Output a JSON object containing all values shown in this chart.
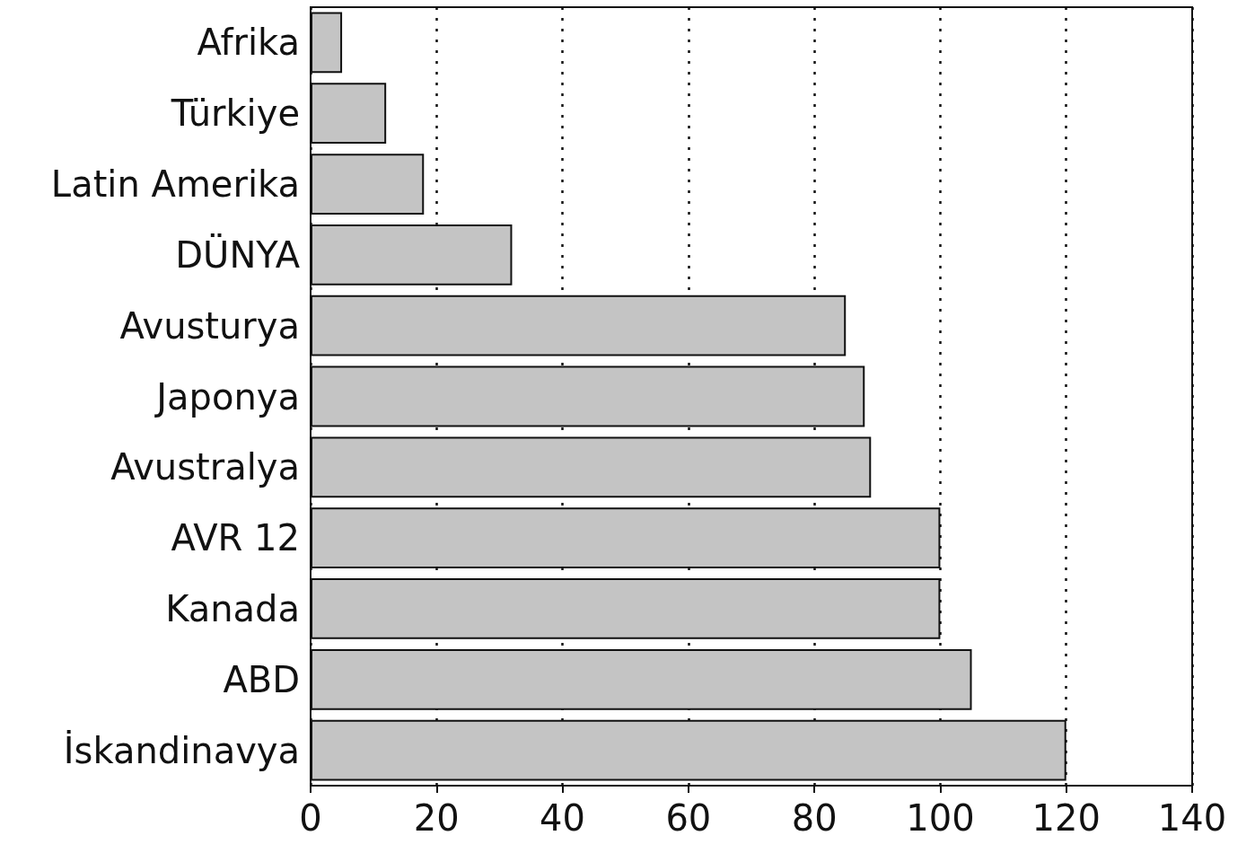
{
  "chart_data": {
    "type": "bar",
    "orientation": "horizontal",
    "categories": [
      "Afrika",
      "Türkiye",
      "Latin Amerika",
      "DÜNYA",
      "Avusturya",
      "Japonya",
      "Avustralya",
      "AVR 12",
      "Kanada",
      "ABD",
      "İskandinavya"
    ],
    "values": [
      5,
      12,
      18,
      32,
      85,
      88,
      89,
      100,
      100,
      105,
      120
    ],
    "color": "#c4c4c4",
    "xlim": [
      0,
      140
    ],
    "xticks": [
      0,
      20,
      40,
      60,
      80,
      100,
      120,
      140
    ],
    "grid": "x"
  }
}
